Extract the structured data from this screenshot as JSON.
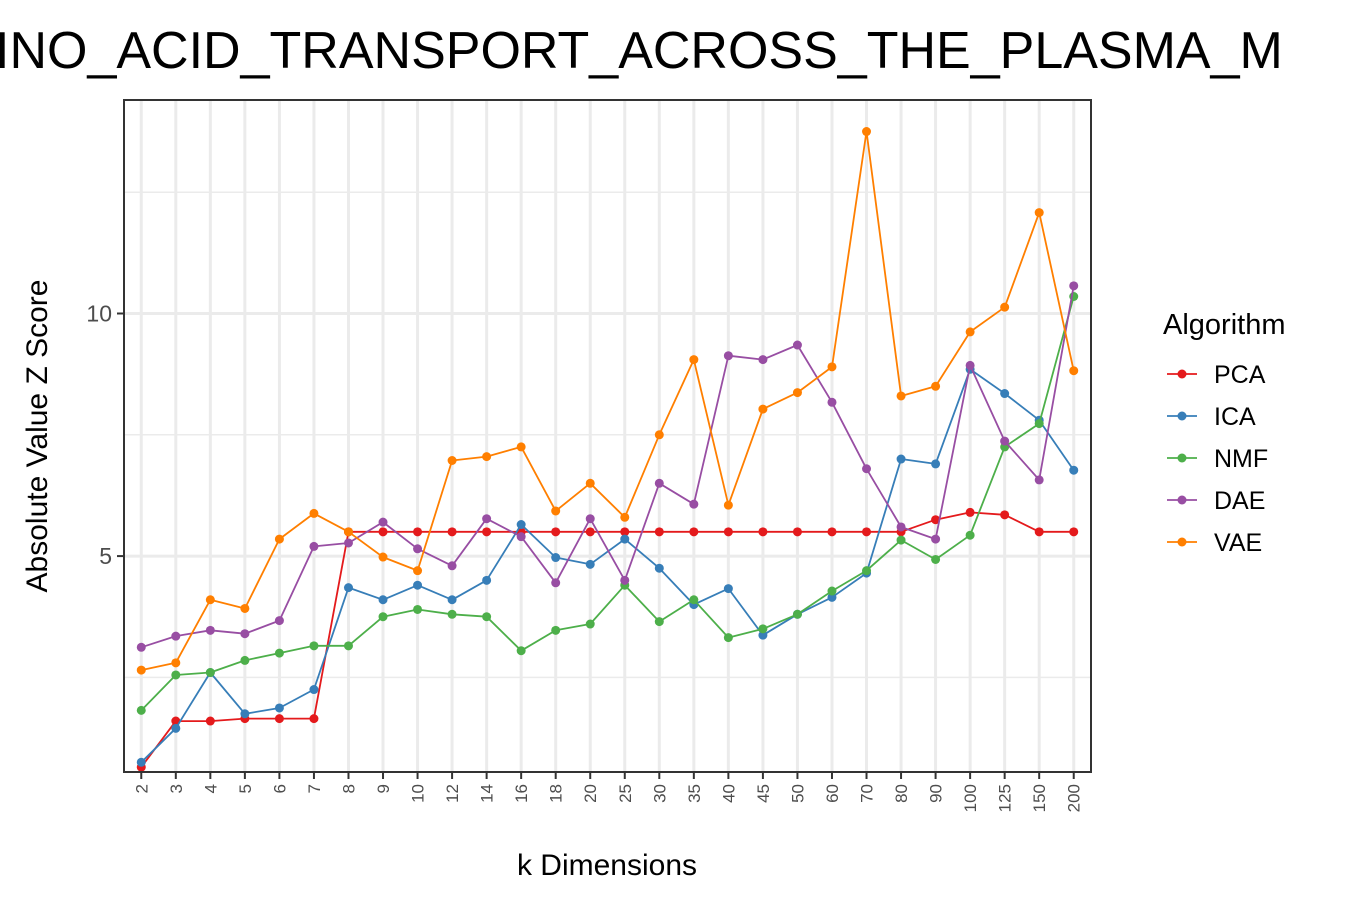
{
  "chart_data": {
    "type": "line",
    "title": "INO_ACID_TRANSPORT_ACROSS_THE_PLASMA_M",
    "xlabel": "k Dimensions",
    "ylabel": "Absolute Value Z Score",
    "categories": [
      "2",
      "3",
      "4",
      "5",
      "6",
      "7",
      "8",
      "9",
      "10",
      "12",
      "14",
      "16",
      "18",
      "20",
      "25",
      "30",
      "35",
      "40",
      "45",
      "50",
      "60",
      "70",
      "80",
      "90",
      "100",
      "125",
      "150",
      "200"
    ],
    "yticks": [
      5,
      10
    ],
    "ylim": [
      0.55,
      14.4
    ],
    "grid": true,
    "legend": {
      "title": "Algorithm",
      "position": "right"
    },
    "series": [
      {
        "name": "PCA",
        "color": "#e41a1c",
        "values": [
          0.65,
          1.6,
          1.6,
          1.65,
          1.65,
          1.65,
          5.5,
          5.5,
          5.5,
          5.5,
          5.5,
          5.5,
          5.5,
          5.5,
          5.5,
          5.5,
          5.5,
          5.5,
          5.5,
          5.5,
          5.5,
          5.5,
          5.5,
          5.75,
          5.9,
          5.85,
          5.5,
          5.5
        ]
      },
      {
        "name": "ICA",
        "color": "#377eb8",
        "values": [
          0.75,
          1.45,
          2.6,
          1.75,
          1.87,
          2.25,
          4.35,
          4.1,
          4.4,
          4.1,
          4.5,
          5.65,
          4.97,
          4.83,
          5.35,
          4.75,
          4.0,
          4.33,
          3.37,
          3.8,
          4.15,
          4.65,
          7.0,
          6.9,
          8.85,
          8.35,
          7.8,
          6.77
        ]
      },
      {
        "name": "NMF",
        "color": "#4daf4a",
        "values": [
          1.82,
          2.55,
          2.6,
          2.85,
          3.0,
          3.15,
          3.15,
          3.75,
          3.9,
          3.8,
          3.75,
          3.05,
          3.47,
          3.6,
          4.4,
          3.65,
          4.1,
          3.32,
          3.5,
          3.8,
          4.28,
          4.7,
          5.33,
          4.93,
          5.43,
          7.25,
          7.73,
          10.35
        ]
      },
      {
        "name": "DAE",
        "color": "#984ea3",
        "values": [
          3.12,
          3.35,
          3.47,
          3.4,
          3.67,
          5.2,
          5.27,
          5.7,
          5.15,
          4.8,
          5.77,
          5.4,
          4.45,
          5.77,
          4.5,
          6.5,
          6.07,
          9.13,
          9.05,
          9.35,
          8.17,
          6.8,
          5.6,
          5.35,
          8.93,
          7.37,
          6.57,
          10.57
        ]
      },
      {
        "name": "VAE",
        "color": "#ff7f00",
        "values": [
          2.65,
          2.8,
          4.1,
          3.92,
          5.35,
          5.88,
          5.5,
          4.98,
          4.7,
          6.97,
          7.05,
          7.25,
          5.93,
          6.5,
          5.8,
          7.5,
          9.05,
          6.05,
          8.03,
          8.37,
          8.9,
          13.75,
          8.3,
          8.5,
          9.62,
          10.13,
          12.08,
          8.82
        ]
      }
    ]
  }
}
